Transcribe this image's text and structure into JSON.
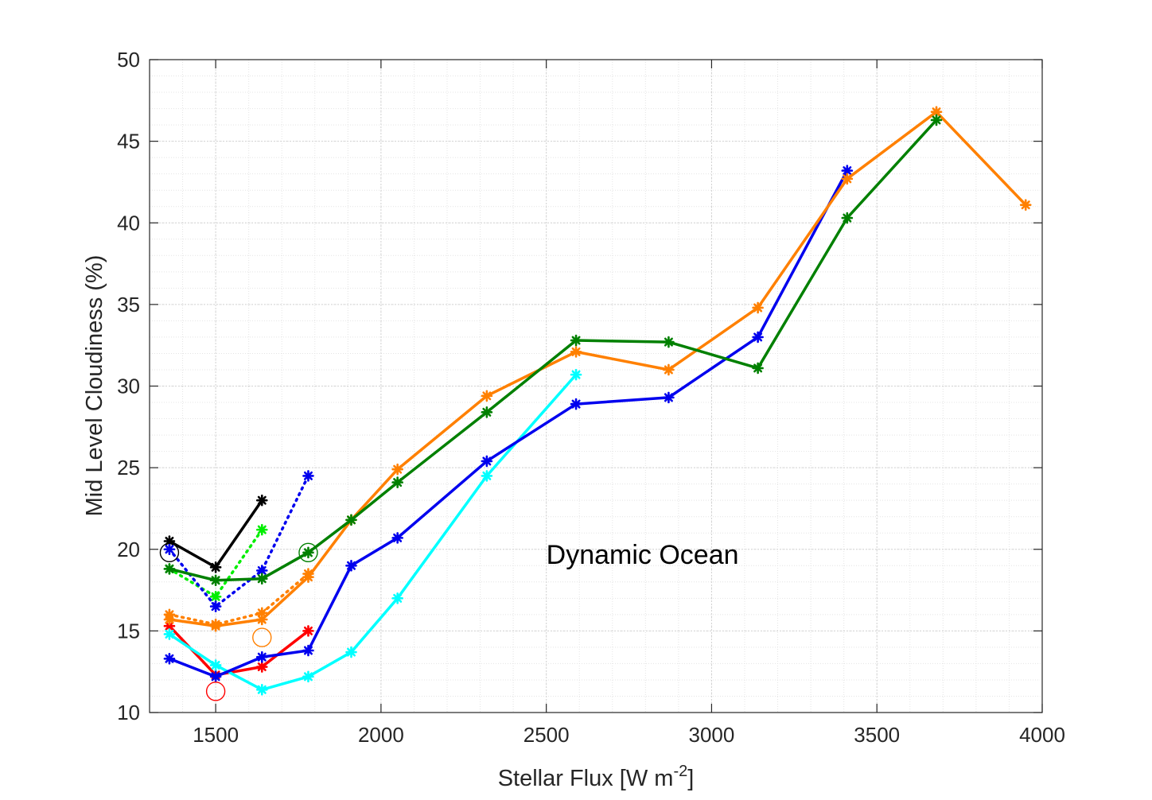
{
  "chart_data": {
    "type": "line",
    "title": "",
    "xlabel": "Stellar Flux [W m",
    "xlabel_sup": "-2",
    "xlabel_end": "]",
    "ylabel": "Mid Level Cloudiness (%)",
    "xlim": [
      1300,
      4000
    ],
    "ylim": [
      10,
      50
    ],
    "xticks": [
      1500,
      2000,
      2500,
      3000,
      3500,
      4000
    ],
    "yticks": [
      10,
      15,
      20,
      25,
      30,
      35,
      40,
      45,
      50
    ],
    "xtick_labels": [
      "1500",
      "2000",
      "2500",
      "3000",
      "3500",
      "4000"
    ],
    "ytick_labels": [
      "10",
      "15",
      "20",
      "25",
      "30",
      "35",
      "40",
      "45",
      "50"
    ],
    "grid": true,
    "minor_grid": true,
    "annotations": [
      {
        "text": "Dynamic Ocean",
        "x": 2500,
        "y": 19.7
      }
    ],
    "series": [
      {
        "name": "black",
        "color": "#000000",
        "style": "solid",
        "x": [
          1360,
          1500,
          1640
        ],
        "y": [
          20.5,
          18.9,
          23.0
        ]
      },
      {
        "name": "green-dotted",
        "color": "#00ee00",
        "style": "dotted",
        "x": [
          1360,
          1500,
          1640
        ],
        "y": [
          18.8,
          17.1,
          21.2
        ]
      },
      {
        "name": "blue-dotted",
        "color": "#0000ee",
        "style": "dotted",
        "x": [
          1360,
          1500,
          1640,
          1780
        ],
        "y": [
          20.0,
          16.5,
          18.7,
          24.5
        ]
      },
      {
        "name": "orange-dotted",
        "color": "#ff8000",
        "style": "dotted",
        "x": [
          1360,
          1500,
          1640,
          1780
        ],
        "y": [
          16.0,
          15.4,
          16.1,
          18.5
        ]
      },
      {
        "name": "red",
        "color": "#ff0000",
        "style": "solid",
        "x": [
          1360,
          1500,
          1640,
          1780
        ],
        "y": [
          15.3,
          12.3,
          12.8,
          15.0
        ]
      },
      {
        "name": "cyan",
        "color": "#00ffff",
        "style": "solid",
        "x": [
          1360,
          1500,
          1640,
          1780,
          1910,
          2050,
          2320,
          2590
        ],
        "y": [
          14.8,
          12.9,
          11.4,
          12.2,
          13.7,
          17.0,
          24.5,
          30.7
        ]
      },
      {
        "name": "blue",
        "color": "#0000ee",
        "style": "solid",
        "x": [
          1360,
          1500,
          1640,
          1780,
          1910,
          2050,
          2320,
          2590,
          2870,
          3140,
          3410
        ],
        "y": [
          13.3,
          12.2,
          13.4,
          13.8,
          19.0,
          20.7,
          25.4,
          28.9,
          29.3,
          33.0,
          43.2
        ]
      },
      {
        "name": "orange",
        "color": "#ff8000",
        "style": "solid",
        "x": [
          1360,
          1500,
          1640,
          1780,
          1910,
          2050,
          2320,
          2590,
          2870,
          3140,
          3410,
          3680,
          3950
        ],
        "y": [
          15.7,
          15.3,
          15.7,
          18.3,
          21.8,
          24.9,
          29.4,
          32.1,
          31.0,
          34.8,
          42.7,
          46.8,
          41.1
        ]
      },
      {
        "name": "dark-green",
        "color": "#008000",
        "style": "solid",
        "x": [
          1360,
          1500,
          1640,
          1780,
          1910,
          2050,
          2320,
          2590,
          2870,
          3140,
          3410,
          3680
        ],
        "y": [
          18.8,
          18.1,
          18.2,
          19.8,
          21.8,
          24.1,
          28.4,
          32.8,
          32.7,
          31.1,
          40.3,
          46.3
        ]
      }
    ],
    "circles": [
      {
        "name": "black-circle",
        "color": "#000000",
        "x": 1360,
        "y": 19.8
      },
      {
        "name": "dark-green-circle",
        "color": "#008000",
        "x": 1780,
        "y": 19.8
      },
      {
        "name": "orange-circle",
        "color": "#ff8000",
        "x": 1640,
        "y": 14.6
      },
      {
        "name": "red-circle",
        "color": "#ff0000",
        "x": 1500,
        "y": 11.3
      }
    ]
  }
}
